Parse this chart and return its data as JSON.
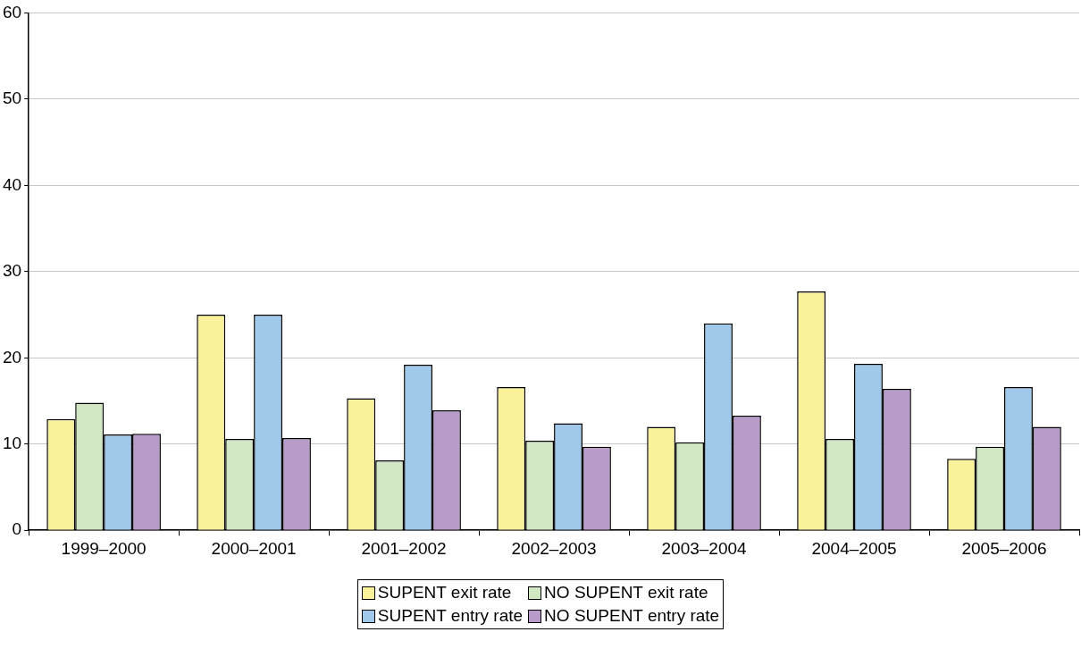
{
  "chart_data": {
    "type": "bar",
    "categories": [
      "1999–2000",
      "2000–2001",
      "2001–2002",
      "2002–2003",
      "2003–2004",
      "2004–2005",
      "2005–2006"
    ],
    "series": [
      {
        "name": "SUPENT exit rate",
        "color": "#faf29a",
        "values": [
          12.9,
          25.0,
          15.3,
          16.6,
          12.0,
          27.7,
          8.3
        ]
      },
      {
        "name": "NO SUPENT exit rate",
        "color": "#d1e7c4",
        "values": [
          14.8,
          10.6,
          8.1,
          10.4,
          10.2,
          10.6,
          9.7
        ]
      },
      {
        "name": "SUPENT entry rate",
        "color": "#9fc8ea",
        "values": [
          11.1,
          25.0,
          19.2,
          12.4,
          24.0,
          19.3,
          16.6
        ]
      },
      {
        "name": "NO SUPENT entry rate",
        "color": "#b89bc9",
        "values": [
          11.2,
          10.7,
          13.9,
          9.7,
          13.3,
          16.4,
          12.0
        ]
      }
    ],
    "ylim": [
      0,
      60
    ],
    "yticks": [
      0,
      10,
      20,
      30,
      40,
      50,
      60
    ],
    "grid": "y",
    "legend": "bottom"
  }
}
